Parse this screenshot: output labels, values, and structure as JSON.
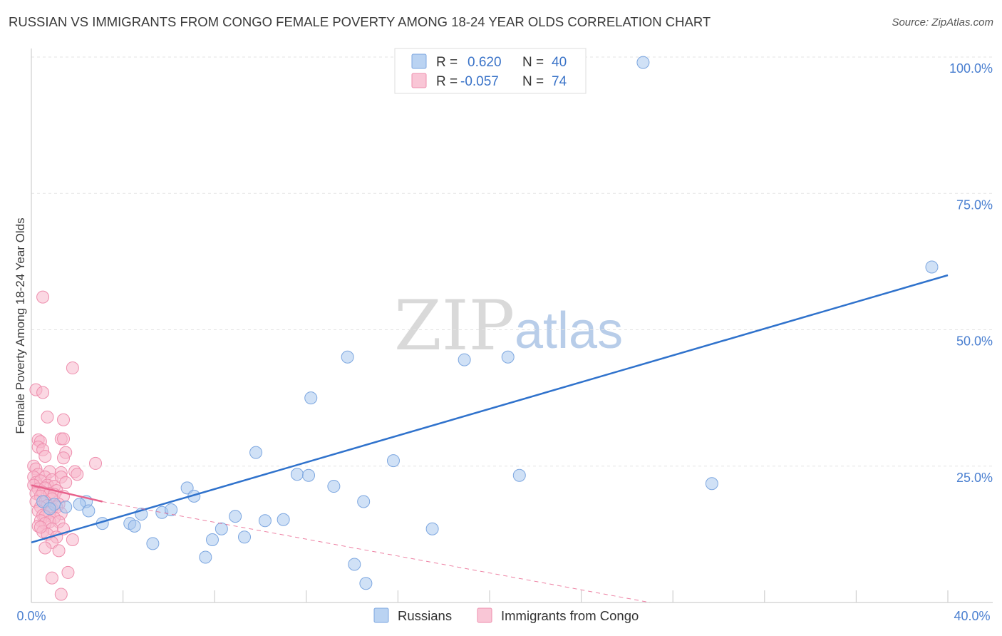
{
  "title": "RUSSIAN VS IMMIGRANTS FROM CONGO FEMALE POVERTY AMONG 18-24 YEAR OLDS CORRELATION CHART",
  "source": "Source: ZipAtlas.com",
  "watermark": {
    "zip": "ZIP",
    "atlas": "atlas"
  },
  "legend": {
    "rows": [
      {
        "r_label": "R =",
        "r_value": "0.620",
        "n_label": "N =",
        "n_value": "40",
        "color": "#a9c8ef"
      },
      {
        "r_label": "R =",
        "r_value": "-0.057",
        "n_label": "N =",
        "n_value": "74",
        "color": "#f7b8cc"
      }
    ]
  },
  "bottom_legend": [
    {
      "label": "Russians",
      "color": "#a9c8ef"
    },
    {
      "label": "Immigrants from Congo",
      "color": "#f7b8cc"
    }
  ],
  "chart_data": {
    "type": "scatter",
    "title": "RUSSIAN VS IMMIGRANTS FROM CONGO FEMALE POVERTY AMONG 18-24 YEAR OLDS CORRELATION CHART",
    "xlabel": "",
    "ylabel": "Female Poverty Among 18-24 Year Olds",
    "xlim": [
      0,
      40
    ],
    "ylim": [
      0,
      100
    ],
    "x_tick_labels": [
      "0.0%",
      "40.0%"
    ],
    "y_tick_labels": [
      "25.0%",
      "50.0%",
      "75.0%",
      "100.0%"
    ],
    "y_ticks": [
      25,
      50,
      75,
      100
    ],
    "series": [
      {
        "name": "Russians",
        "color": "#a9c8ef",
        "stroke": "#7da7e0",
        "trend_color": "#2f72cc",
        "trend": [
          [
            0,
            11.0
          ],
          [
            40,
            60.0
          ]
        ],
        "points": [
          [
            26.7,
            99.0
          ],
          [
            39.3,
            61.5
          ],
          [
            13.8,
            45.0
          ],
          [
            18.9,
            44.5
          ],
          [
            20.8,
            45.0
          ],
          [
            12.2,
            37.5
          ],
          [
            9.8,
            27.5
          ],
          [
            15.8,
            26.0
          ],
          [
            11.6,
            23.5
          ],
          [
            12.1,
            23.3
          ],
          [
            21.3,
            23.3
          ],
          [
            29.7,
            21.8
          ],
          [
            13.2,
            21.3
          ],
          [
            6.8,
            21.0
          ],
          [
            7.1,
            19.5
          ],
          [
            2.4,
            18.5
          ],
          [
            14.5,
            18.5
          ],
          [
            1.0,
            18.0
          ],
          [
            2.1,
            18.0
          ],
          [
            1.5,
            17.5
          ],
          [
            0.5,
            18.5
          ],
          [
            0.8,
            17.2
          ],
          [
            2.5,
            16.8
          ],
          [
            4.8,
            16.2
          ],
          [
            5.7,
            16.5
          ],
          [
            6.1,
            17.0
          ],
          [
            8.9,
            15.8
          ],
          [
            10.2,
            15.0
          ],
          [
            11.0,
            15.2
          ],
          [
            3.1,
            14.5
          ],
          [
            4.3,
            14.5
          ],
          [
            4.5,
            14.0
          ],
          [
            8.3,
            13.5
          ],
          [
            17.5,
            13.5
          ],
          [
            9.3,
            12.0
          ],
          [
            7.9,
            11.5
          ],
          [
            5.3,
            10.8
          ],
          [
            7.6,
            8.3
          ],
          [
            14.1,
            7.0
          ],
          [
            14.6,
            3.5
          ]
        ]
      },
      {
        "name": "Immigrants from Congo",
        "color": "#f7b8cc",
        "stroke": "#ee8fae",
        "trend_color": "#e8628c",
        "trend": [
          [
            0,
            21.5
          ],
          [
            3.1,
            18.5
          ]
        ],
        "trend_extension": [
          [
            3.1,
            18.5
          ],
          [
            27.0,
            -4.0
          ]
        ],
        "points": [
          [
            0.5,
            56.0
          ],
          [
            1.8,
            43.0
          ],
          [
            0.2,
            39.0
          ],
          [
            0.5,
            38.5
          ],
          [
            1.4,
            33.5
          ],
          [
            0.7,
            34.0
          ],
          [
            1.3,
            30.0
          ],
          [
            1.4,
            30.0
          ],
          [
            0.3,
            29.8
          ],
          [
            0.4,
            29.5
          ],
          [
            0.3,
            28.5
          ],
          [
            0.5,
            28.0
          ],
          [
            1.5,
            27.5
          ],
          [
            0.6,
            26.8
          ],
          [
            1.4,
            26.5
          ],
          [
            2.8,
            25.5
          ],
          [
            0.1,
            25.0
          ],
          [
            0.2,
            24.5
          ],
          [
            0.8,
            24.0
          ],
          [
            1.9,
            24.0
          ],
          [
            1.3,
            23.8
          ],
          [
            0.3,
            23.5
          ],
          [
            0.1,
            23.0
          ],
          [
            0.6,
            23.0
          ],
          [
            0.9,
            22.5
          ],
          [
            1.3,
            23.0
          ],
          [
            2.0,
            23.5
          ],
          [
            0.2,
            22.0
          ],
          [
            0.4,
            22.3
          ],
          [
            1.5,
            22.0
          ],
          [
            0.1,
            21.5
          ],
          [
            0.7,
            21.5
          ],
          [
            1.0,
            21.3
          ],
          [
            0.3,
            20.8
          ],
          [
            0.6,
            21.0
          ],
          [
            1.1,
            20.5
          ],
          [
            0.2,
            20.0
          ],
          [
            0.5,
            20.2
          ],
          [
            0.8,
            20.0
          ],
          [
            1.0,
            19.8
          ],
          [
            0.4,
            19.5
          ],
          [
            1.4,
            19.5
          ],
          [
            0.9,
            19.0
          ],
          [
            0.2,
            18.5
          ],
          [
            0.6,
            18.5
          ],
          [
            1.2,
            18.0
          ],
          [
            0.7,
            17.8
          ],
          [
            0.4,
            17.5
          ],
          [
            0.9,
            17.2
          ],
          [
            1.1,
            17.5
          ],
          [
            0.3,
            16.8
          ],
          [
            0.8,
            16.5
          ],
          [
            0.5,
            16.0
          ],
          [
            1.3,
            16.3
          ],
          [
            0.6,
            15.8
          ],
          [
            1.0,
            15.5
          ],
          [
            0.4,
            15.0
          ],
          [
            0.8,
            14.8
          ],
          [
            0.6,
            14.5
          ],
          [
            1.2,
            14.8
          ],
          [
            0.3,
            14.0
          ],
          [
            0.9,
            13.5
          ],
          [
            0.5,
            13.0
          ],
          [
            1.4,
            13.5
          ],
          [
            0.7,
            12.5
          ],
          [
            1.1,
            12.0
          ],
          [
            1.8,
            11.5
          ],
          [
            0.9,
            11.0
          ],
          [
            0.6,
            10.0
          ],
          [
            1.2,
            9.5
          ],
          [
            1.6,
            5.5
          ],
          [
            0.9,
            4.5
          ],
          [
            1.3,
            1.5
          ],
          [
            0.4,
            13.8
          ]
        ]
      }
    ]
  }
}
